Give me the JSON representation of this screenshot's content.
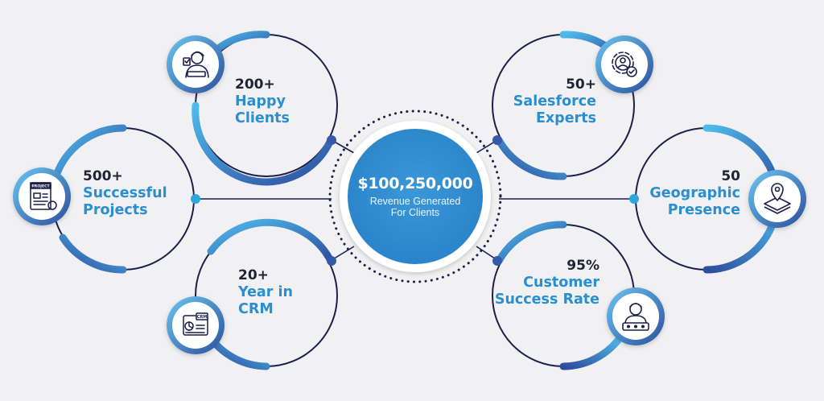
{
  "center": {
    "value": "$100,250,000",
    "line1": "Revenue Generated",
    "line2": "For Clients"
  },
  "stats": [
    {
      "number": "200+",
      "line1": "Happy",
      "line2": "Clients",
      "icon": "happy-client-icon"
    },
    {
      "number": "500+",
      "line1": "Successful",
      "line2": "Projects",
      "icon": "project-document-icon"
    },
    {
      "number": "20+",
      "line1": "Year in",
      "line2": "CRM",
      "icon": "crm-dashboard-icon"
    },
    {
      "number": "50+",
      "line1": "Salesforce",
      "line2": "Experts",
      "icon": "expert-gear-icon"
    },
    {
      "number": "50",
      "line1": "Geographic",
      "line2": "Presence",
      "icon": "map-location-icon"
    },
    {
      "number": "95%",
      "line1": "Customer",
      "line2": "Success Rate",
      "icon": "customer-rating-icon"
    }
  ],
  "icon_labels": {
    "project": "PROJECT",
    "crm": "CRM"
  },
  "colors": {
    "navy": "#1c1f4a",
    "blue_light": "#3fb0e8",
    "blue_dark": "#2d4d9e",
    "center_fill": "#2f8bd0",
    "text_dark": "#1f2333",
    "text_blue": "#2a8ecf",
    "background": "#f1f1f3"
  }
}
